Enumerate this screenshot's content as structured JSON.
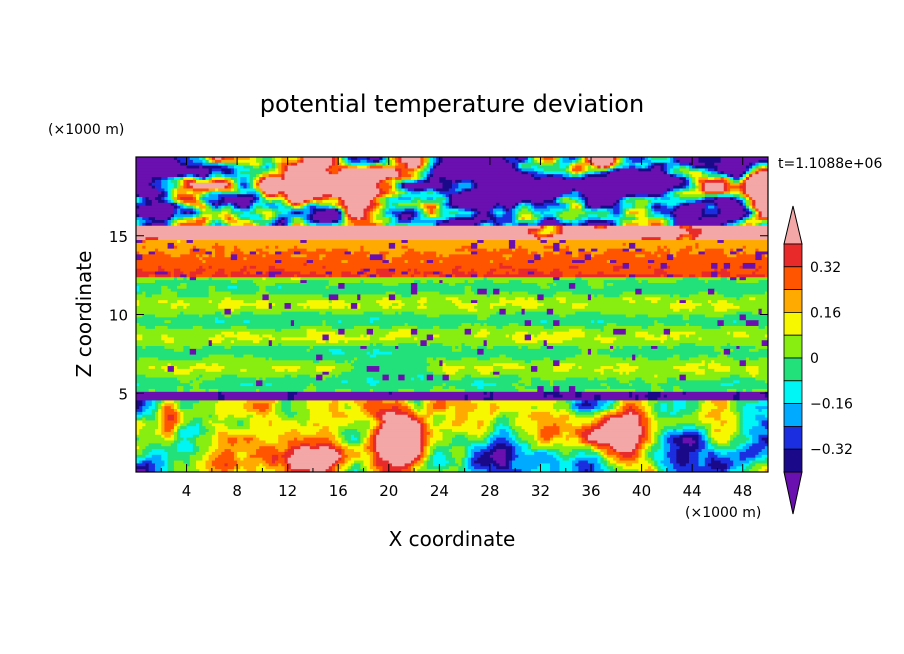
{
  "chart_data": {
    "type": "heatmap",
    "title": "potential temperature deviation",
    "xlabel": "X coordinate",
    "ylabel": "Z coordinate",
    "x_unit": "(×1000 m)",
    "y_unit": "(×1000 m)",
    "time_label": "t=1.1088e+06",
    "xlim": [
      0,
      50
    ],
    "ylim": [
      0,
      20
    ],
    "x_ticks": [
      4,
      8,
      12,
      16,
      20,
      24,
      28,
      32,
      36,
      40,
      44,
      48
    ],
    "x_tick_labels": [
      "4",
      "8",
      "12",
      "16",
      "20",
      "24",
      "28",
      "32",
      "36",
      "40",
      "44",
      "48"
    ],
    "y_ticks": [
      5,
      10,
      15
    ],
    "y_tick_labels": [
      "5",
      "10",
      "15"
    ],
    "colorbar": {
      "levels": [
        -0.4,
        -0.32,
        -0.24,
        -0.16,
        -0.08,
        0,
        0.08,
        0.16,
        0.24,
        0.32,
        0.4
      ],
      "tick_values": [
        0.32,
        0.16,
        0,
        -0.16,
        -0.32
      ],
      "tick_labels": [
        "0.32",
        "0.16",
        "0",
        "−0.16",
        "−0.32"
      ],
      "colors": [
        "#6a0fb0",
        "#1a0a8a",
        "#1b2ee0",
        "#00aaff",
        "#00f5f5",
        "#22e07a",
        "#88ee11",
        "#f7f700",
        "#ffaa00",
        "#ff5500",
        "#e82a2a",
        "#f4a7a7"
      ],
      "extend": "both"
    }
  }
}
